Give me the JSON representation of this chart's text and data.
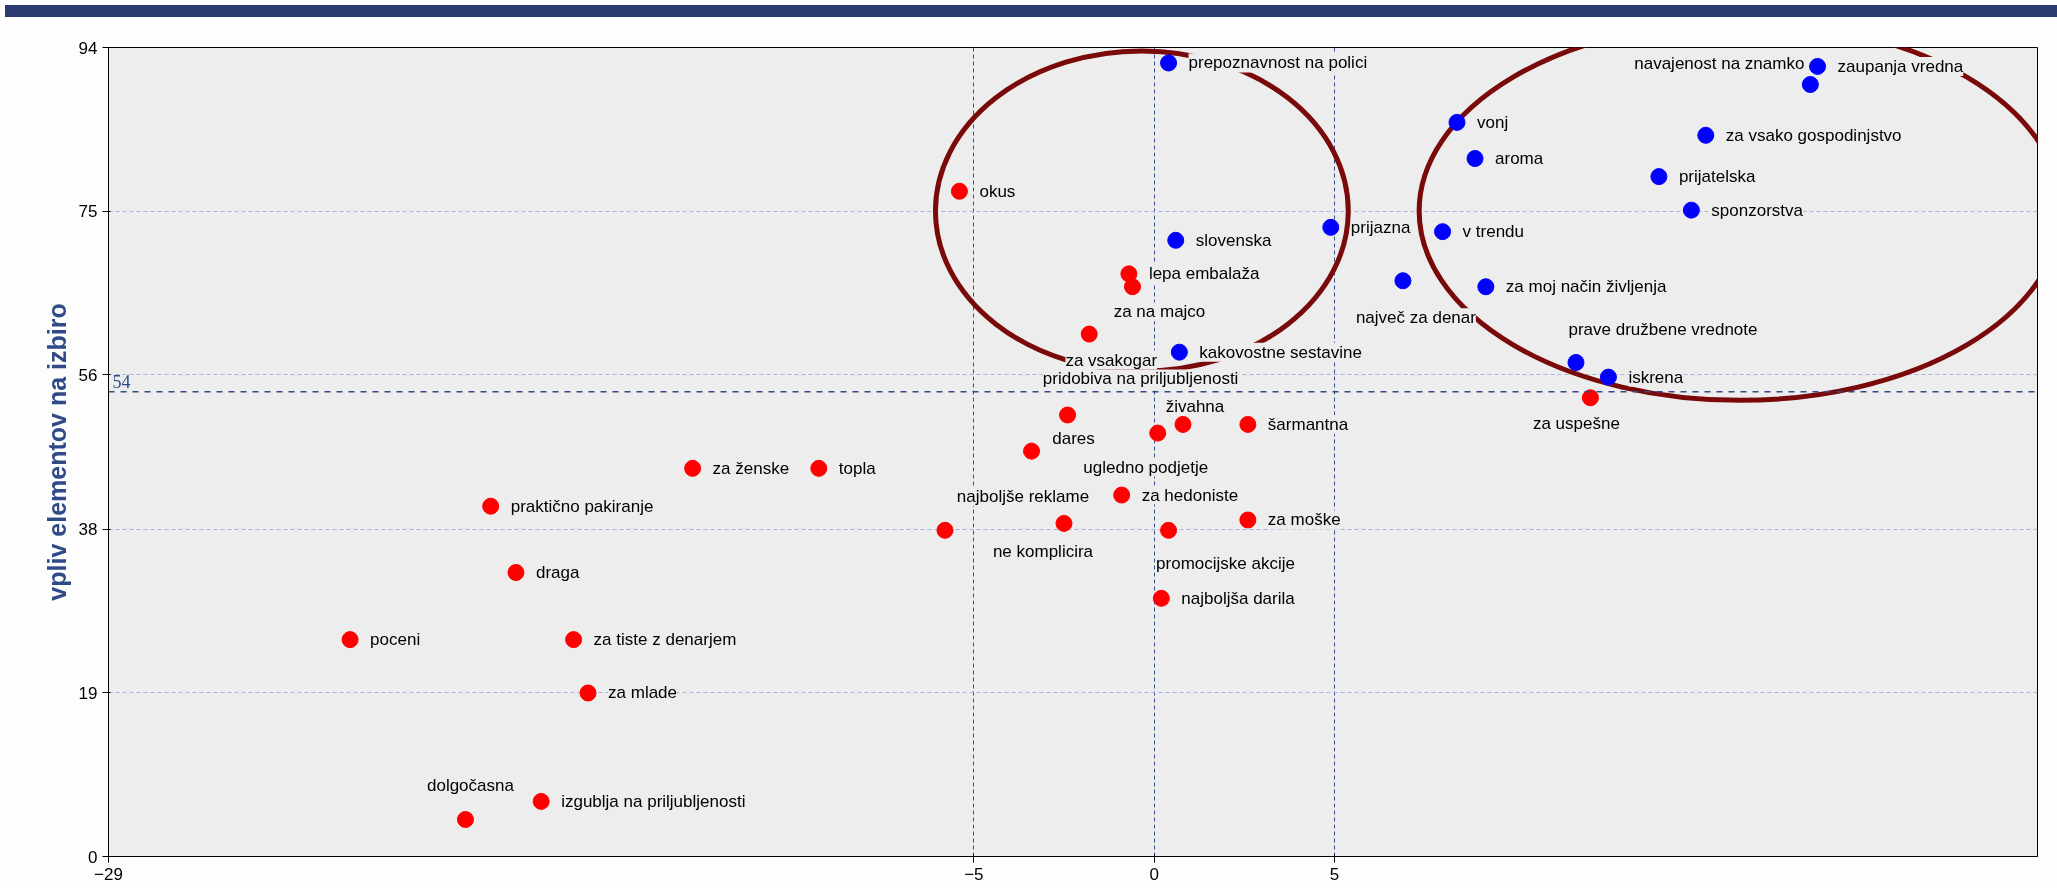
{
  "chart_data": {
    "type": "scatter",
    "ylabel": "vpliv elementov na izbiro",
    "xlim": [
      -29,
      24.5
    ],
    "ylim": [
      0,
      94
    ],
    "xticks": [
      -29,
      -5,
      0,
      5
    ],
    "yticks": [
      0,
      19,
      38,
      56,
      75,
      94
    ],
    "grid": true,
    "marker": "circle",
    "ref_lines": [
      {
        "axis": "y",
        "value": 54,
        "label": "54",
        "color": "#2f4a86",
        "line_style": "dashed"
      }
    ],
    "series": [
      {
        "color": "#ff0000",
        "x": [
          -5.4,
          -0.7,
          -0.6,
          -1.8,
          -2.4,
          -3.4,
          0.8,
          0.1,
          2.6,
          -0.9,
          -5.8,
          -2.5,
          0.4,
          2.6,
          0.2,
          -12.8,
          -9.3,
          -18.4,
          -17.7,
          -22.3,
          -16.1,
          -15.7,
          -19.1,
          -17.0,
          12.1
        ],
        "values": [
          77.3,
          67.7,
          66.2,
          60.7,
          51.3,
          47.1,
          50.2,
          49.2,
          50.2,
          42.0,
          37.9,
          38.7,
          37.9,
          39.1,
          30.0,
          45.1,
          45.1,
          40.7,
          33.0,
          25.2,
          25.2,
          19.0,
          4.3,
          6.4,
          53.3
        ]
      },
      {
        "color": "#0000ff",
        "x": [
          0.4,
          0.6,
          0.7,
          4.9,
          8.4,
          8.9,
          8.0,
          6.9,
          9.2,
          11.7,
          12.6,
          15.3,
          14.0,
          14.9,
          18.4,
          18.2
        ],
        "values": [
          92.2,
          71.6,
          58.6,
          73.1,
          85.3,
          81.1,
          72.6,
          66.9,
          66.2,
          57.4,
          55.7,
          83.8,
          79.0,
          75.1,
          91.8,
          89.7
        ]
      }
    ],
    "annotations": [
      {
        "text": "okus",
        "x": -5.4,
        "y": 77.3
      },
      {
        "text": "lepa embalaža",
        "x": -0.7,
        "y": 67.7
      },
      {
        "text": "za na majco",
        "x": -0.6,
        "y": 66.2
      },
      {
        "text": "za vsakogar",
        "x": -1.8,
        "y": 60.7
      },
      {
        "text": "pridobiva na priljubljenosti",
        "x": -2.4,
        "y": 51.3
      },
      {
        "text": "dares",
        "x": -3.4,
        "y": 47.1
      },
      {
        "text": "živahna",
        "x": 0.8,
        "y": 50.2
      },
      {
        "text": "ugledno podjetje",
        "x": 0.1,
        "y": 49.2
      },
      {
        "text": "šarmantna",
        "x": 2.6,
        "y": 50.2
      },
      {
        "text": "za hedoniste",
        "x": -0.9,
        "y": 42.0
      },
      {
        "text": "najboljše reklame",
        "x": -5.8,
        "y": 37.9
      },
      {
        "text": "ne komplicira",
        "x": -2.5,
        "y": 38.7
      },
      {
        "text": "promocijske akcije",
        "x": 0.4,
        "y": 37.9
      },
      {
        "text": "za moške",
        "x": 2.6,
        "y": 39.1
      },
      {
        "text": "najboljša darila",
        "x": 0.2,
        "y": 30.0
      },
      {
        "text": "za ženske",
        "x": -12.8,
        "y": 45.1
      },
      {
        "text": "topla",
        "x": -9.3,
        "y": 45.1
      },
      {
        "text": "praktično pakiranje",
        "x": -18.4,
        "y": 40.7
      },
      {
        "text": "draga",
        "x": -17.7,
        "y": 33.0
      },
      {
        "text": "poceni",
        "x": -22.3,
        "y": 25.2
      },
      {
        "text": "za tiste z denarjem",
        "x": -16.1,
        "y": 25.2
      },
      {
        "text": "za mlade",
        "x": -15.7,
        "y": 19.0
      },
      {
        "text": "dolgočasna",
        "x": -19.1,
        "y": 4.3
      },
      {
        "text": "izgublja na priljubljenosti",
        "x": -17.0,
        "y": 6.4
      },
      {
        "text": "za uspešne",
        "x": 12.1,
        "y": 53.3
      },
      {
        "text": "prepoznavnost na polici",
        "x": 0.4,
        "y": 92.2
      },
      {
        "text": "slovenska",
        "x": 0.6,
        "y": 71.6
      },
      {
        "text": "kakovostne sestavine",
        "x": 0.7,
        "y": 58.6
      },
      {
        "text": "prijazna",
        "x": 4.9,
        "y": 73.1
      },
      {
        "text": "vonj",
        "x": 8.4,
        "y": 85.3
      },
      {
        "text": "aroma",
        "x": 8.9,
        "y": 81.1
      },
      {
        "text": "v trendu",
        "x": 8.0,
        "y": 72.6
      },
      {
        "text": "največ za denar",
        "x": 6.9,
        "y": 66.9
      },
      {
        "text": "za moj način življenja",
        "x": 9.2,
        "y": 66.2
      },
      {
        "text": "prave družbene vrednote",
        "x": 11.7,
        "y": 57.4
      },
      {
        "text": "iskrena",
        "x": 12.6,
        "y": 55.7
      },
      {
        "text": "za vsako gospodinjstvo",
        "x": 15.3,
        "y": 83.8
      },
      {
        "text": "prijatelska",
        "x": 14.0,
        "y": 79.0
      },
      {
        "text": "sponzorstva",
        "x": 14.9,
        "y": 75.1
      },
      {
        "text": "zaupanja vredna",
        "x": 18.4,
        "y": 91.8
      },
      {
        "text": "navajenost na znamko",
        "x": 18.2,
        "y": 89.7
      }
    ]
  }
}
